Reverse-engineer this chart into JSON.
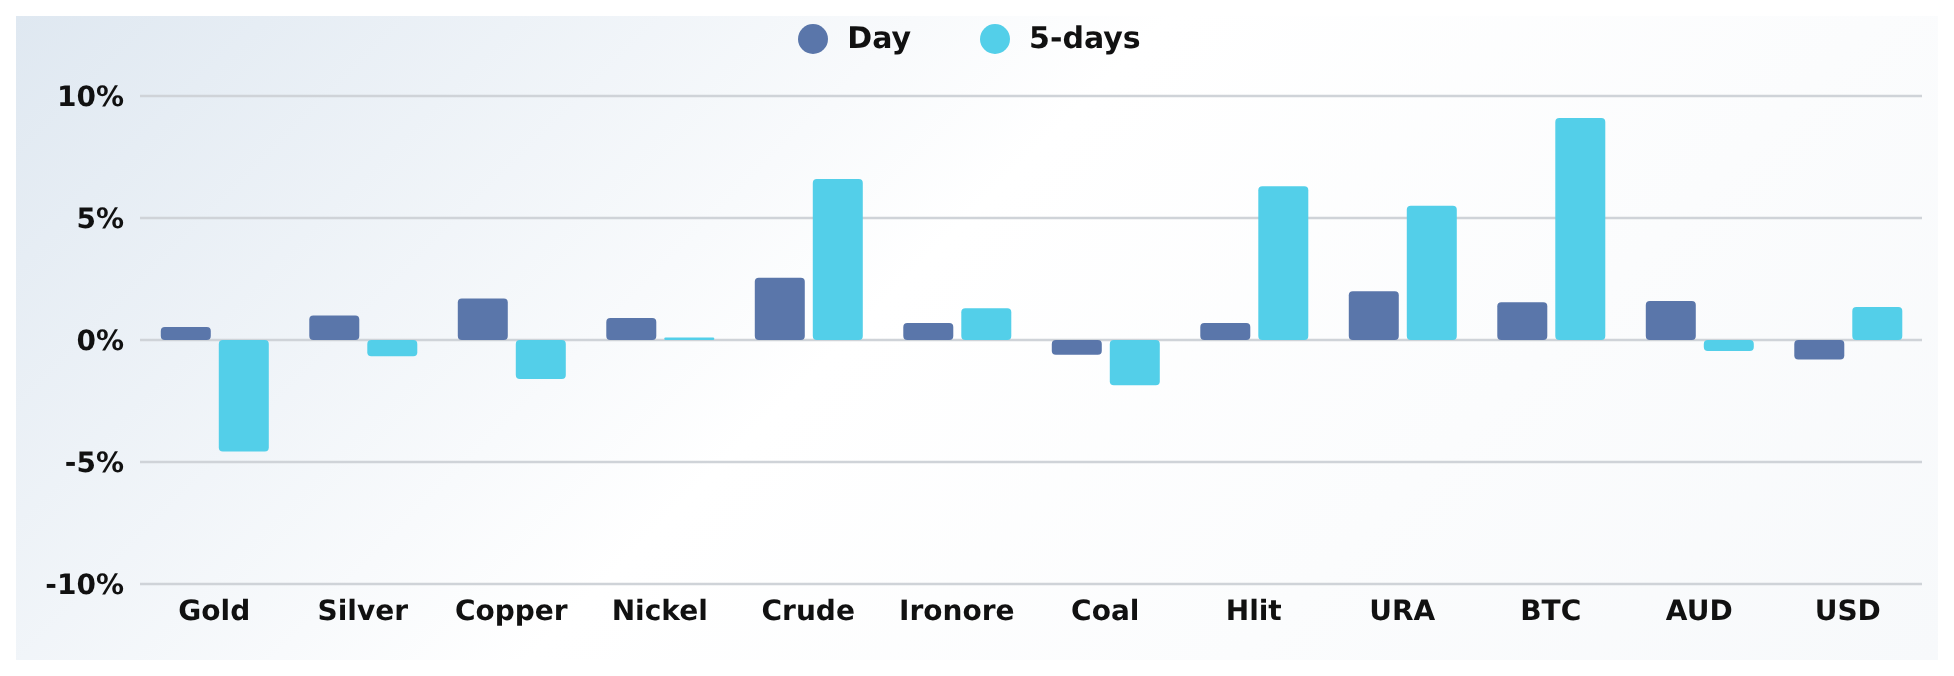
{
  "chart_data": {
    "type": "bar",
    "categories": [
      "Gold",
      "Silver",
      "Copper",
      "Nickel",
      "Crude",
      "Ironore",
      "Coal",
      "Hlit",
      "URA",
      "BTC",
      "AUD",
      "USD"
    ],
    "series": [
      {
        "name": "Day",
        "color": "#5a76aa",
        "values": [
          0.53,
          1.0,
          1.7,
          0.9,
          2.55,
          0.7,
          -0.6,
          0.7,
          2.0,
          1.55,
          1.6,
          -0.8
        ]
      },
      {
        "name": "5-days",
        "color": "#53cfe9",
        "values": [
          -4.57,
          -0.67,
          -1.6,
          0.1,
          6.6,
          1.3,
          -1.85,
          6.3,
          5.5,
          9.1,
          -0.45,
          1.35
        ]
      }
    ],
    "ylim": [
      -10,
      10
    ],
    "yticks": [
      {
        "value": -10,
        "label": "-10%"
      },
      {
        "value": -5,
        "label": "-5%"
      },
      {
        "value": 0,
        "label": "0%"
      },
      {
        "value": 5,
        "label": "5%"
      },
      {
        "value": 10,
        "label": "10%"
      }
    ],
    "grid": "y",
    "legend": "top"
  }
}
